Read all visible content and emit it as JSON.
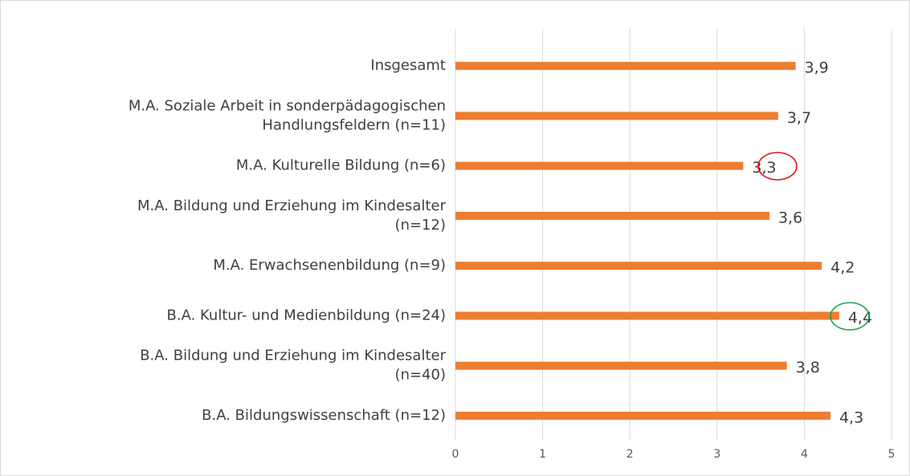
{
  "chart_data": {
    "type": "bar",
    "orientation": "horizontal",
    "categories": [
      "Insgesamt",
      "M.A. Soziale Arbeit in sonderpädagogischen\nHandlungsfeldern (n=11)",
      "M.A. Kulturelle Bildung (n=6)",
      "M.A. Bildung und Erziehung im Kindesalter\n(n=12)",
      "M.A. Erwachsenenbildung (n=9)",
      "B.A. Kultur- und Medienbildung (n=24)",
      "B.A. Bildung und Erziehung im Kindesalter\n(n=40)",
      "B.A. Bildungswissenschaft (n=12)"
    ],
    "values": [
      3.9,
      3.7,
      3.3,
      3.6,
      4.2,
      4.4,
      3.8,
      4.3
    ],
    "value_labels": [
      "3,9",
      "3,7",
      "3,3",
      "3,6",
      "4,2",
      "4,4",
      "3,8",
      "4,3"
    ],
    "color": "#ed7d31",
    "xlim": [
      0,
      5
    ],
    "xticks": [
      0,
      1,
      2,
      3,
      4,
      5
    ],
    "grid": true
  }
}
